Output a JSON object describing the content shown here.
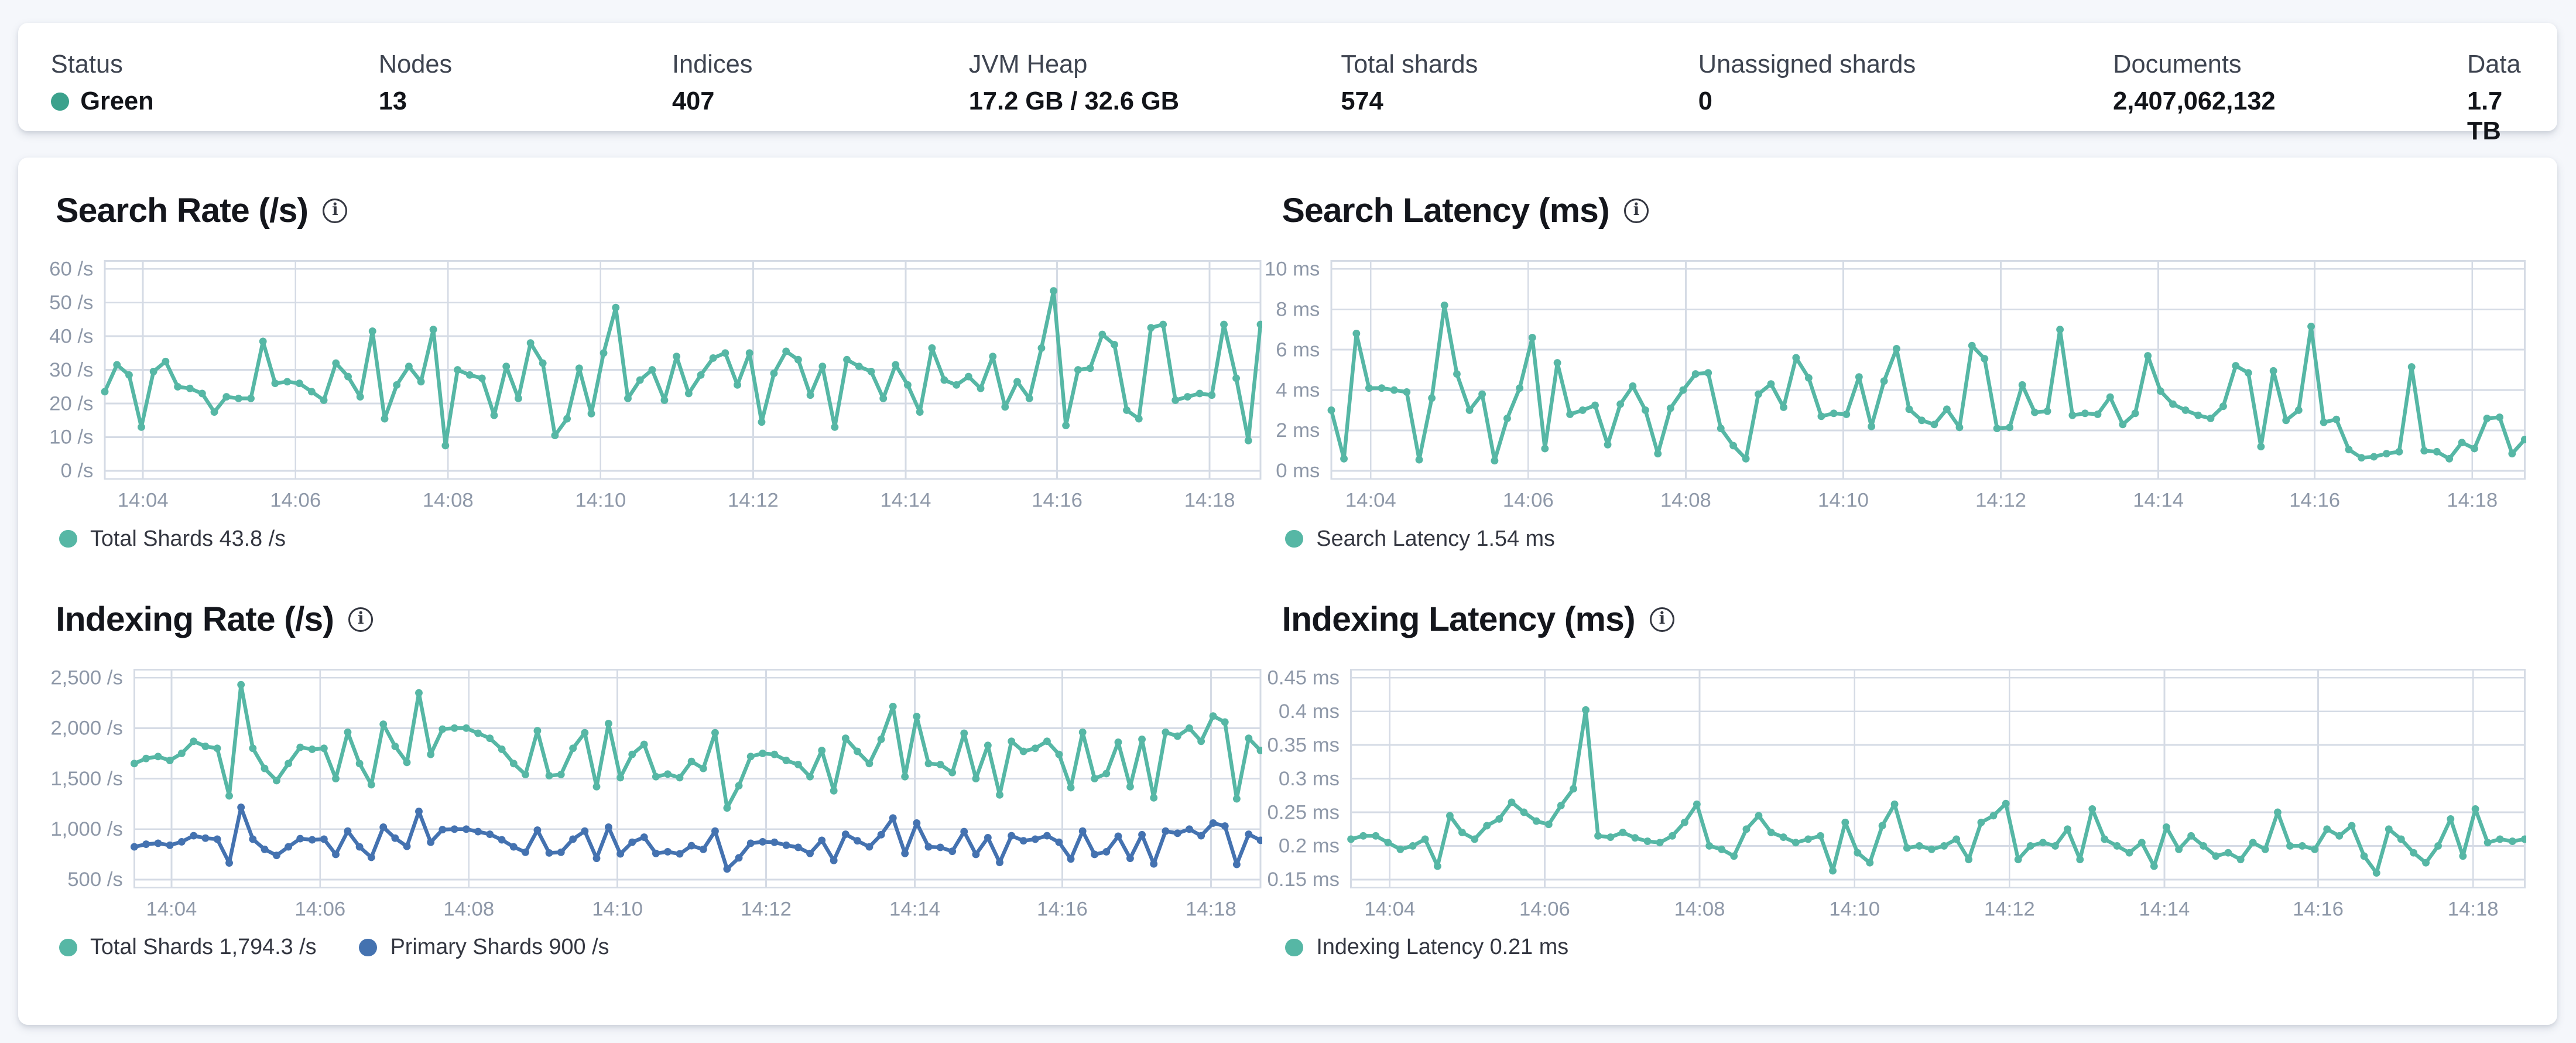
{
  "status_bar": {
    "items": [
      {
        "label": "Status",
        "value": "Green",
        "dot_color": "#3ba18c"
      },
      {
        "label": "Nodes",
        "value": "13"
      },
      {
        "label": "Indices",
        "value": "407"
      },
      {
        "label": "JVM Heap",
        "value": "17.2 GB / 32.6 GB"
      },
      {
        "label": "Total shards",
        "value": "574"
      },
      {
        "label": "Unassigned shards",
        "value": "0"
      },
      {
        "label": "Documents",
        "value": "2,407,062,132"
      },
      {
        "label": "Data",
        "value": "1.7 TB"
      }
    ]
  },
  "colors": {
    "teal": "#56b7a5",
    "blue": "#4472b0",
    "status_green": "#3ba18c",
    "grid": "#d5dbe5",
    "axis_text": "#8e98a8"
  },
  "xticks": {
    "labels": [
      "14:04",
      "14:06",
      "14:08",
      "14:10",
      "14:12",
      "14:14",
      "14:16",
      "14:18"
    ],
    "fractions": [
      0.033,
      0.165,
      0.297,
      0.429,
      0.561,
      0.693,
      0.824,
      0.956
    ]
  },
  "chart_data": [
    {
      "type": "line",
      "title": "Search Rate (/s)",
      "ylim": [
        -2.4,
        62.4
      ],
      "yticks": [
        0,
        10,
        20,
        30,
        40,
        50,
        60
      ],
      "ytick_labels": [
        "0 /s",
        "10 /s",
        "20 /s",
        "30 /s",
        "40 /s",
        "50 /s",
        "60 /s"
      ],
      "legend": [
        {
          "label": "Total Shards 43.8 /s",
          "color": "#56b7a5"
        }
      ],
      "series": [
        {
          "name": "Total Shards",
          "color": "#56b7a5",
          "values": [
            23.5,
            31.5,
            28.5,
            13,
            29.5,
            32.5,
            25,
            24.5,
            23,
            17.5,
            22,
            21.5,
            21.5,
            38.5,
            26,
            26.5,
            26,
            23.5,
            21,
            32,
            28,
            22,
            41.5,
            15.5,
            25.5,
            31,
            26.5,
            42,
            7.5,
            30,
            28.5,
            27.5,
            16.5,
            31,
            21.5,
            38,
            32,
            10.5,
            15.5,
            30.5,
            17,
            35,
            48.5,
            21.5,
            27,
            30,
            21,
            34,
            23,
            28.5,
            33.5,
            35,
            25.5,
            35,
            14.5,
            29,
            35.5,
            33,
            22.5,
            31,
            13,
            33,
            31,
            29.5,
            21.5,
            31.5,
            25.5,
            17.5,
            36.5,
            27,
            25.5,
            28,
            24.5,
            34,
            19,
            26.5,
            21.5,
            36.5,
            53.5,
            13.5,
            30,
            30.5,
            40.5,
            37.5,
            18,
            15.5,
            42.5,
            43.5,
            21,
            22,
            23,
            22.5,
            43.5,
            27.5,
            9,
            43.5
          ]
        }
      ]
    },
    {
      "type": "line",
      "title": "Search Latency (ms)",
      "ylim": [
        -0.4,
        10.4
      ],
      "yticks": [
        0,
        2,
        4,
        6,
        8,
        10
      ],
      "ytick_labels": [
        "0 ms",
        "2 ms",
        "4 ms",
        "6 ms",
        "8 ms",
        "10 ms"
      ],
      "legend": [
        {
          "label": "Search Latency 1.54 ms",
          "color": "#56b7a5"
        }
      ],
      "series": [
        {
          "name": "Search Latency",
          "color": "#56b7a5",
          "values": [
            3.0,
            0.6,
            6.8,
            4.1,
            4.1,
            4.0,
            3.9,
            0.55,
            3.6,
            8.2,
            4.8,
            3.0,
            3.8,
            0.5,
            2.6,
            4.1,
            6.6,
            1.1,
            5.35,
            2.8,
            3.0,
            3.25,
            1.3,
            3.3,
            4.2,
            3.0,
            0.85,
            3.1,
            4.0,
            4.8,
            4.85,
            2.1,
            1.25,
            0.6,
            3.8,
            4.3,
            3.15,
            5.6,
            4.6,
            2.7,
            2.85,
            2.8,
            4.65,
            2.2,
            4.45,
            6.05,
            3.05,
            2.5,
            2.3,
            3.05,
            2.15,
            6.2,
            5.55,
            2.1,
            2.15,
            4.25,
            2.9,
            2.95,
            7.0,
            2.75,
            2.85,
            2.8,
            3.65,
            2.3,
            2.85,
            5.7,
            3.95,
            3.3,
            3.0,
            2.75,
            2.6,
            3.2,
            5.2,
            4.85,
            1.2,
            4.95,
            2.5,
            3.0,
            7.15,
            2.4,
            2.55,
            1.05,
            0.65,
            0.7,
            0.85,
            0.95,
            5.15,
            1.0,
            0.95,
            0.6,
            1.4,
            1.1,
            2.6,
            2.65,
            0.85,
            1.55
          ]
        }
      ]
    },
    {
      "type": "line",
      "title": "Indexing Rate (/s)",
      "ylim": [
        420,
        2580
      ],
      "yticks": [
        500,
        1000,
        1500,
        2000,
        2500
      ],
      "ytick_labels": [
        "500 /s",
        "1,000 /s",
        "1,500 /s",
        "2,000 /s",
        "2,500 /s"
      ],
      "legend": [
        {
          "label": "Total Shards 1,794.3 /s",
          "color": "#56b7a5"
        },
        {
          "label": "Primary Shards 900 /s",
          "color": "#4472b0"
        }
      ],
      "series": [
        {
          "name": "Total Shards",
          "color": "#56b7a5",
          "values": [
            1650,
            1700,
            1720,
            1680,
            1750,
            1870,
            1820,
            1800,
            1330,
            2430,
            1800,
            1600,
            1480,
            1650,
            1810,
            1790,
            1800,
            1500,
            1960,
            1650,
            1440,
            2040,
            1820,
            1660,
            2350,
            1740,
            1990,
            2000,
            2000,
            1950,
            1900,
            1790,
            1650,
            1540,
            1975,
            1530,
            1540,
            1800,
            1955,
            1420,
            2045,
            1510,
            1740,
            1840,
            1520,
            1545,
            1510,
            1670,
            1600,
            1955,
            1210,
            1430,
            1720,
            1750,
            1740,
            1680,
            1640,
            1520,
            1780,
            1380,
            1900,
            1770,
            1650,
            1890,
            2215,
            1520,
            2115,
            1650,
            1640,
            1560,
            1950,
            1500,
            1830,
            1340,
            1870,
            1770,
            1800,
            1870,
            1740,
            1410,
            1960,
            1500,
            1550,
            1860,
            1420,
            1890,
            1310,
            1960,
            1920,
            2000,
            1870,
            2120,
            2060,
            1300,
            1900,
            1780
          ]
        },
        {
          "name": "Primary Shards",
          "color": "#4472b0",
          "values": [
            825,
            850,
            860,
            840,
            875,
            935,
            910,
            900,
            665,
            1215,
            900,
            800,
            740,
            825,
            905,
            895,
            900,
            750,
            980,
            825,
            720,
            1020,
            910,
            830,
            1175,
            870,
            995,
            1000,
            1000,
            975,
            950,
            895,
            825,
            770,
            990,
            765,
            770,
            900,
            980,
            710,
            1020,
            755,
            870,
            920,
            760,
            775,
            755,
            835,
            800,
            980,
            605,
            715,
            860,
            875,
            870,
            840,
            820,
            760,
            890,
            690,
            950,
            885,
            825,
            945,
            1110,
            760,
            1060,
            825,
            820,
            780,
            975,
            750,
            915,
            670,
            935,
            885,
            900,
            935,
            870,
            705,
            980,
            750,
            775,
            930,
            710,
            945,
            655,
            980,
            960,
            1000,
            935,
            1060,
            1030,
            650,
            950,
            890
          ]
        }
      ]
    },
    {
      "type": "line",
      "title": "Indexing Latency (ms)",
      "ylim": [
        0.138,
        0.462
      ],
      "yticks": [
        0.15,
        0.2,
        0.25,
        0.3,
        0.35,
        0.4,
        0.45
      ],
      "ytick_labels": [
        "0.15 ms",
        "0.2 ms",
        "0.25 ms",
        "0.3 ms",
        "0.35 ms",
        "0.4 ms",
        "0.45 ms"
      ],
      "legend": [
        {
          "label": "Indexing Latency 0.21 ms",
          "color": "#56b7a5"
        }
      ],
      "series": [
        {
          "name": "Indexing Latency",
          "color": "#56b7a5",
          "values": [
            0.21,
            0.215,
            0.215,
            0.205,
            0.195,
            0.2,
            0.21,
            0.17,
            0.245,
            0.22,
            0.21,
            0.23,
            0.24,
            0.265,
            0.25,
            0.237,
            0.232,
            0.26,
            0.285,
            0.402,
            0.215,
            0.213,
            0.22,
            0.212,
            0.207,
            0.205,
            0.215,
            0.235,
            0.262,
            0.2,
            0.195,
            0.185,
            0.225,
            0.245,
            0.22,
            0.213,
            0.205,
            0.21,
            0.215,
            0.163,
            0.235,
            0.19,
            0.175,
            0.23,
            0.262,
            0.197,
            0.2,
            0.195,
            0.2,
            0.21,
            0.18,
            0.235,
            0.245,
            0.263,
            0.18,
            0.2,
            0.205,
            0.2,
            0.225,
            0.18,
            0.255,
            0.21,
            0.2,
            0.19,
            0.205,
            0.17,
            0.228,
            0.195,
            0.215,
            0.2,
            0.185,
            0.19,
            0.18,
            0.205,
            0.195,
            0.25,
            0.2,
            0.2,
            0.195,
            0.225,
            0.215,
            0.23,
            0.185,
            0.16,
            0.225,
            0.21,
            0.19,
            0.175,
            0.2,
            0.24,
            0.185,
            0.255,
            0.205,
            0.21,
            0.207,
            0.21
          ]
        }
      ]
    }
  ]
}
